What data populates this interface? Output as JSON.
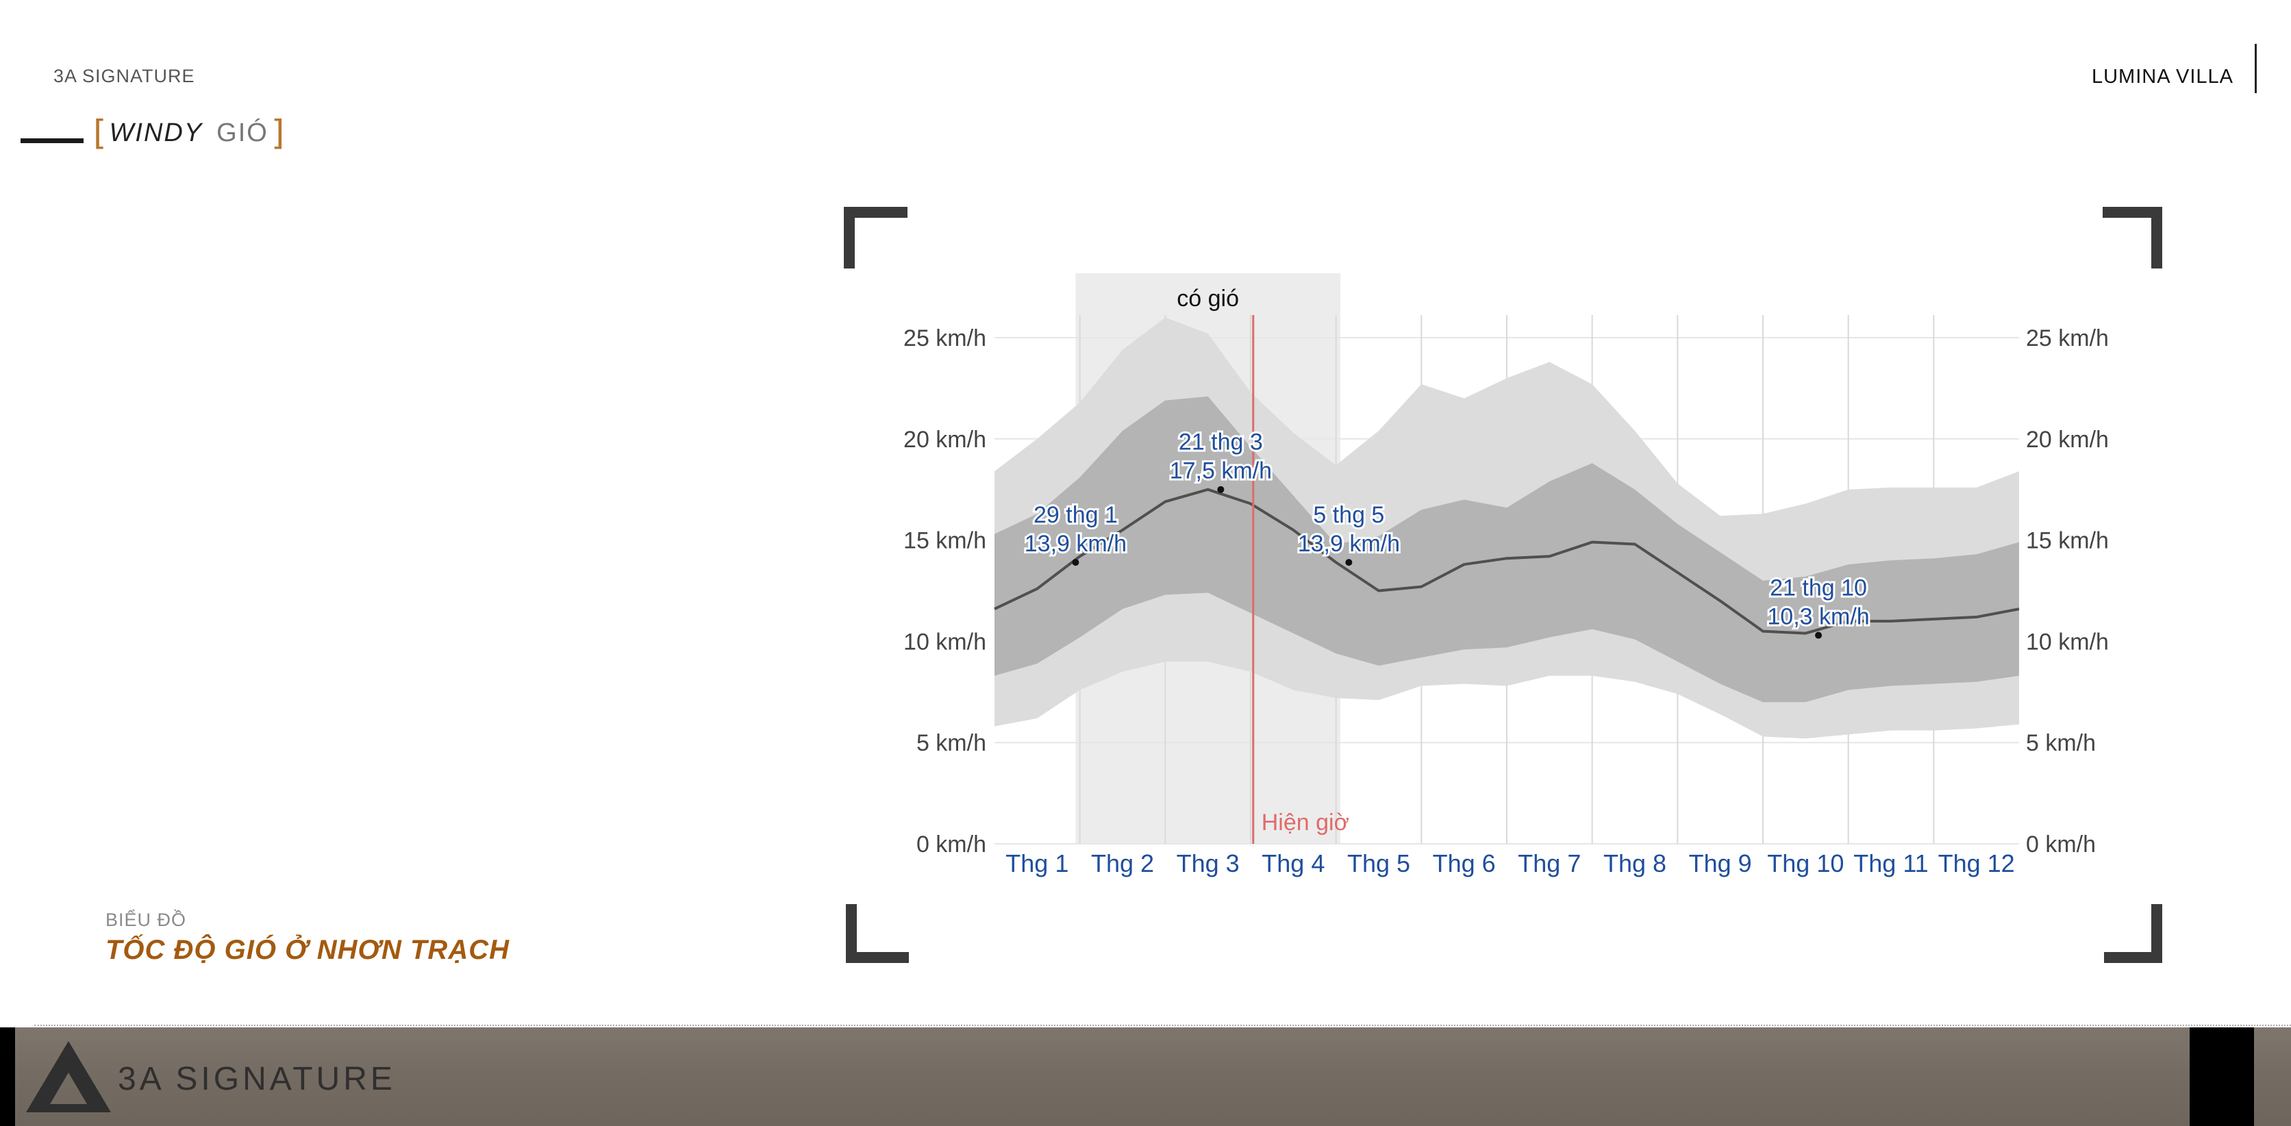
{
  "header": {
    "brand": "3A SIGNATURE",
    "project": "LUMINA VILLA"
  },
  "section": {
    "bracket_open": "[",
    "title_en": "WINDY",
    "title_vi": "GIÓ",
    "bracket_close": "]"
  },
  "caption": {
    "kicker": "BIỂU ĐỒ",
    "title": "TỐC ĐỘ GIÓ Ở NHƠN TRẠCH"
  },
  "footer": {
    "brand": "3A SIGNATURE"
  },
  "colors": {
    "accent": "#a35a10",
    "tick_label": "#1f4e9c",
    "line": "#505050",
    "band_outer": "#dcdcdc",
    "band_inner": "#b4b4b4",
    "windy_shade": "#ececec",
    "now_line": "#e06b6b"
  },
  "chart_data": {
    "type": "area",
    "title": "",
    "xlabel": "",
    "ylabel": "",
    "categories": [
      "Thg 1",
      "Thg 2",
      "Thg 3",
      "Thg 4",
      "Thg 5",
      "Thg 6",
      "Thg 7",
      "Thg 8",
      "Thg 9",
      "Thg 10",
      "Thg 11",
      "Thg 12"
    ],
    "ylim": [
      0,
      26
    ],
    "yticks": [
      0,
      5,
      10,
      15,
      20,
      25
    ],
    "ytick_labels": [
      "0 km/h",
      "5 km/h",
      "10 km/h",
      "15 km/h",
      "20 km/h",
      "25 km/h"
    ],
    "x": [
      0.0,
      0.5,
      1.0,
      1.5,
      2.0,
      2.5,
      3.0,
      3.5,
      4.0,
      4.5,
      5.0,
      5.5,
      6.0,
      6.5,
      7.0,
      7.5,
      8.0,
      8.5,
      9.0,
      9.5,
      10.0,
      10.5,
      11.0,
      11.5,
      12.0
    ],
    "series": [
      {
        "values": [
          11.6,
          12.6,
          14.2,
          15.5,
          16.9,
          17.5,
          16.8,
          15.5,
          13.9,
          12.5,
          12.7,
          13.8,
          14.1,
          14.2,
          14.9,
          14.8,
          13.4,
          12.0,
          10.5,
          10.4,
          11.0,
          11.0,
          11.1,
          11.2,
          11.6
        ]
      },
      {
        "values": [
          8.3,
          8.9,
          10.2,
          11.6,
          12.3,
          12.4,
          11.4,
          10.4,
          9.4,
          8.8,
          9.2,
          9.6,
          9.7,
          10.2,
          10.6,
          10.1,
          9.0,
          7.9,
          7.0,
          7.0,
          7.6,
          7.8,
          7.9,
          8.0,
          8.3
        ]
      },
      {
        "values": [
          15.3,
          16.3,
          18.1,
          20.4,
          21.9,
          22.1,
          19.6,
          17.2,
          14.8,
          15.2,
          16.5,
          17.0,
          16.6,
          17.9,
          18.8,
          17.5,
          15.8,
          14.4,
          13.0,
          13.2,
          13.8,
          14.0,
          14.1,
          14.3,
          14.9
        ]
      },
      {
        "values": [
          5.8,
          6.2,
          7.6,
          8.5,
          9.0,
          9.0,
          8.5,
          7.6,
          7.2,
          7.1,
          7.8,
          7.9,
          7.8,
          8.3,
          8.3,
          8.0,
          7.4,
          6.4,
          5.3,
          5.2,
          5.4,
          5.6,
          5.6,
          5.7,
          5.9
        ]
      },
      {
        "values": [
          18.4,
          20.0,
          21.8,
          24.4,
          26.0,
          25.2,
          22.3,
          20.3,
          18.7,
          20.4,
          22.7,
          22.0,
          23.0,
          23.8,
          22.7,
          20.4,
          17.8,
          16.2,
          16.3,
          16.8,
          17.5,
          17.6,
          17.6,
          17.6,
          18.4
        ]
      }
    ],
    "shaded_region": {
      "label": "có gió",
      "x_start": 0.95,
      "x_end": 4.05
    },
    "now_marker": {
      "label": "Hiện giờ",
      "x": 3.03
    },
    "annotations": [
      {
        "x": 0.95,
        "y": 13.9,
        "date": "29 thg 1",
        "value": "13,9 km/h"
      },
      {
        "x": 2.65,
        "y": 17.5,
        "date": "21 thg 3",
        "value": "17,5 km/h"
      },
      {
        "x": 4.15,
        "y": 13.9,
        "date": "5 thg 5",
        "value": "13,9 km/h"
      },
      {
        "x": 9.65,
        "y": 10.3,
        "date": "21 thg 10",
        "value": "10,3 km/h"
      }
    ],
    "grid": true,
    "legend": "none"
  }
}
